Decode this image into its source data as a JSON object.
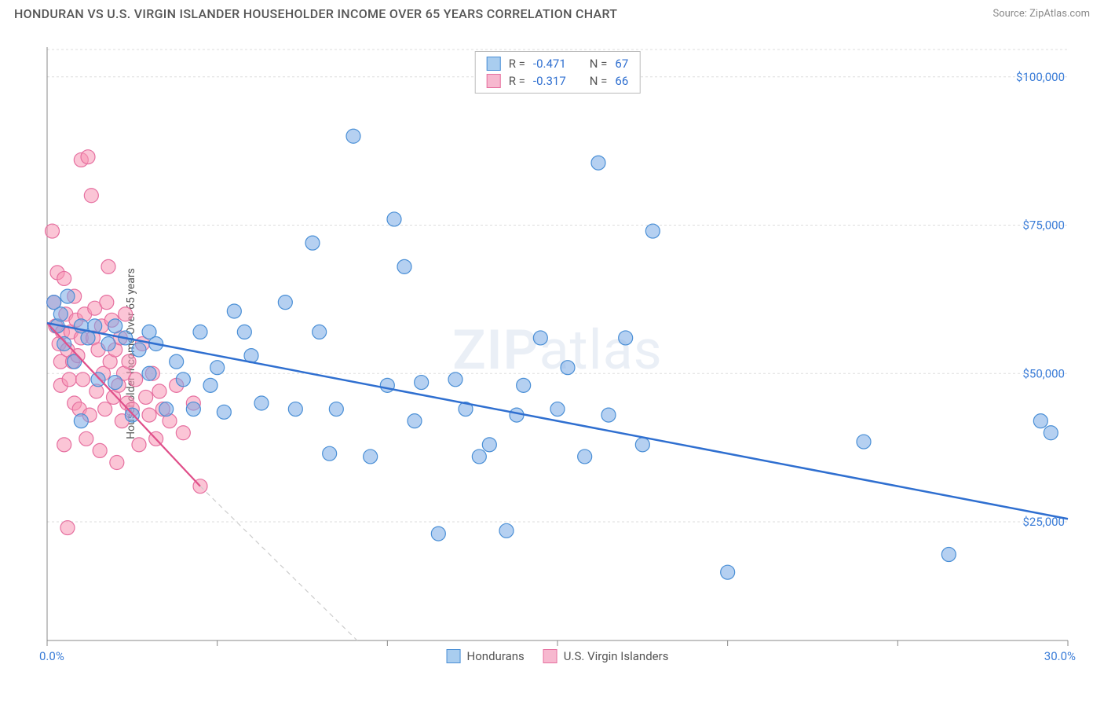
{
  "header": {
    "title": "HONDURAN VS U.S. VIRGIN ISLANDER HOUSEHOLDER INCOME OVER 65 YEARS CORRELATION CHART",
    "source": "Source: ZipAtlas.com"
  },
  "chart": {
    "type": "scatter",
    "ylabel": "Householder Income Over 65 years",
    "watermark": "ZIPatlas",
    "background_color": "#ffffff",
    "grid_color": "#dddddd",
    "axis_color": "#888888",
    "xlim": [
      0,
      30
    ],
    "ylim": [
      5000,
      105000
    ],
    "x_axis_label_min": "0.0%",
    "x_axis_label_max": "30.0%",
    "x_axis_label_color": "#3b7dd8",
    "y_ticks": [
      {
        "value": 25000,
        "label": "$25,000"
      },
      {
        "value": 50000,
        "label": "$50,000"
      },
      {
        "value": 75000,
        "label": "$75,000"
      },
      {
        "value": 100000,
        "label": "$100,000"
      }
    ],
    "y_tick_text_color": "#3b7dd8",
    "x_minor_ticks": [
      0,
      5,
      10,
      15,
      20,
      25,
      30
    ],
    "series": [
      {
        "name": "Hondurans",
        "marker_fill": "rgba(120,170,230,0.55)",
        "marker_stroke": "#4a8fd6",
        "swatch_fill": "#a9cdef",
        "swatch_stroke": "#4a8fd6",
        "line_color": "#2f6fd0",
        "line_dash": null,
        "marker_radius": 9,
        "R": "-0.471",
        "N": "67",
        "regression": {
          "x1": 0,
          "y1": 58500,
          "x2": 30,
          "y2": 25500
        },
        "points": [
          [
            0.2,
            62000
          ],
          [
            0.3,
            58000
          ],
          [
            0.4,
            60000
          ],
          [
            0.5,
            55000
          ],
          [
            0.6,
            63000
          ],
          [
            0.8,
            52000
          ],
          [
            1.0,
            42000
          ],
          [
            1.0,
            58000
          ],
          [
            1.2,
            56000
          ],
          [
            1.4,
            58000
          ],
          [
            1.5,
            49000
          ],
          [
            1.8,
            55000
          ],
          [
            2.0,
            58000
          ],
          [
            2.0,
            48500
          ],
          [
            2.3,
            56000
          ],
          [
            2.5,
            43000
          ],
          [
            2.7,
            54000
          ],
          [
            3.0,
            57000
          ],
          [
            3.0,
            50000
          ],
          [
            3.2,
            55000
          ],
          [
            3.5,
            44000
          ],
          [
            3.8,
            52000
          ],
          [
            4.0,
            49000
          ],
          [
            4.3,
            44000
          ],
          [
            4.5,
            57000
          ],
          [
            4.8,
            48000
          ],
          [
            5.0,
            51000
          ],
          [
            5.2,
            43500
          ],
          [
            5.5,
            60500
          ],
          [
            5.8,
            57000
          ],
          [
            6.0,
            53000
          ],
          [
            6.3,
            45000
          ],
          [
            7.0,
            62000
          ],
          [
            7.3,
            44000
          ],
          [
            7.8,
            72000
          ],
          [
            8.0,
            57000
          ],
          [
            8.3,
            36500
          ],
          [
            8.5,
            44000
          ],
          [
            9.0,
            90000
          ],
          [
            9.5,
            36000
          ],
          [
            10.0,
            48000
          ],
          [
            10.2,
            76000
          ],
          [
            10.5,
            68000
          ],
          [
            10.8,
            42000
          ],
          [
            11.0,
            48500
          ],
          [
            11.5,
            23000
          ],
          [
            12.0,
            49000
          ],
          [
            12.3,
            44000
          ],
          [
            12.7,
            36000
          ],
          [
            13.0,
            38000
          ],
          [
            13.5,
            23500
          ],
          [
            13.8,
            43000
          ],
          [
            14.0,
            48000
          ],
          [
            14.5,
            56000
          ],
          [
            15.0,
            44000
          ],
          [
            15.3,
            51000
          ],
          [
            15.8,
            36000
          ],
          [
            16.2,
            85500
          ],
          [
            16.5,
            43000
          ],
          [
            17.0,
            56000
          ],
          [
            17.5,
            38000
          ],
          [
            20.0,
            16500
          ],
          [
            24.0,
            38500
          ],
          [
            26.5,
            19500
          ],
          [
            29.2,
            42000
          ],
          [
            29.5,
            40000
          ],
          [
            17.8,
            74000
          ]
        ]
      },
      {
        "name": "U.S. Virgin Islanders",
        "marker_fill": "rgba(248,150,180,0.55)",
        "marker_stroke": "#e670a0",
        "swatch_fill": "#f7b8cf",
        "swatch_stroke": "#e670a0",
        "line_color": "#e04f8a",
        "line_dash": "6,5",
        "marker_radius": 9,
        "R": "-0.317",
        "N": "66",
        "regression": {
          "x1": 0,
          "y1": 58500,
          "x2": 10,
          "y2": 0
        },
        "regression_solid_end": {
          "x": 4.5,
          "y": 31000
        },
        "points": [
          [
            0.15,
            74000
          ],
          [
            0.2,
            62000
          ],
          [
            0.25,
            58000
          ],
          [
            0.3,
            67000
          ],
          [
            0.35,
            55000
          ],
          [
            0.4,
            48000
          ],
          [
            0.4,
            52000
          ],
          [
            0.45,
            57000
          ],
          [
            0.5,
            66000
          ],
          [
            0.5,
            38000
          ],
          [
            0.55,
            60000
          ],
          [
            0.6,
            54000
          ],
          [
            0.6,
            24000
          ],
          [
            0.65,
            49000
          ],
          [
            0.7,
            57000
          ],
          [
            0.75,
            52000
          ],
          [
            0.8,
            63000
          ],
          [
            0.8,
            45000
          ],
          [
            0.85,
            59000
          ],
          [
            0.9,
            53000
          ],
          [
            0.95,
            44000
          ],
          [
            1.0,
            56000
          ],
          [
            1.0,
            86000
          ],
          [
            1.05,
            49000
          ],
          [
            1.1,
            60000
          ],
          [
            1.15,
            39000
          ],
          [
            1.2,
            86500
          ],
          [
            1.25,
            43000
          ],
          [
            1.3,
            80000
          ],
          [
            1.35,
            56000
          ],
          [
            1.4,
            61000
          ],
          [
            1.45,
            47000
          ],
          [
            1.5,
            54000
          ],
          [
            1.55,
            37000
          ],
          [
            1.6,
            58000
          ],
          [
            1.65,
            50000
          ],
          [
            1.7,
            44000
          ],
          [
            1.75,
            62000
          ],
          [
            1.8,
            68000
          ],
          [
            1.85,
            52000
          ],
          [
            1.9,
            59000
          ],
          [
            1.95,
            46000
          ],
          [
            2.0,
            54000
          ],
          [
            2.05,
            35000
          ],
          [
            2.1,
            48000
          ],
          [
            2.15,
            56000
          ],
          [
            2.2,
            42000
          ],
          [
            2.25,
            50000
          ],
          [
            2.3,
            60000
          ],
          [
            2.35,
            45000
          ],
          [
            2.4,
            52000
          ],
          [
            2.5,
            44000
          ],
          [
            2.6,
            49000
          ],
          [
            2.7,
            38000
          ],
          [
            2.8,
            55000
          ],
          [
            2.9,
            46000
          ],
          [
            3.0,
            43000
          ],
          [
            3.1,
            50000
          ],
          [
            3.2,
            39000
          ],
          [
            3.3,
            47000
          ],
          [
            3.4,
            44000
          ],
          [
            3.6,
            42000
          ],
          [
            3.8,
            48000
          ],
          [
            4.0,
            40000
          ],
          [
            4.3,
            45000
          ],
          [
            4.5,
            31000
          ]
        ]
      }
    ],
    "bottom_legend": [
      {
        "label": "Hondurans",
        "fill": "#a9cdef",
        "stroke": "#4a8fd6"
      },
      {
        "label": "U.S. Virgin Islanders",
        "fill": "#f7b8cf",
        "stroke": "#e670a0"
      }
    ]
  }
}
